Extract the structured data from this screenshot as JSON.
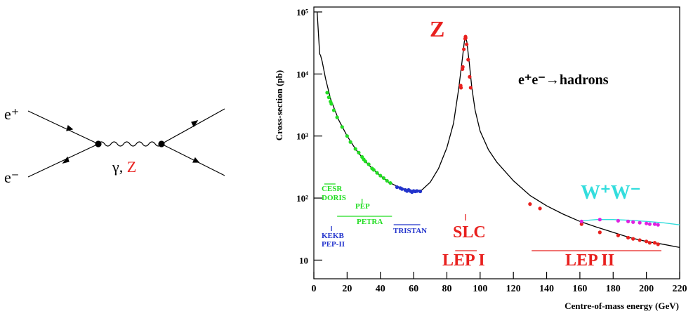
{
  "diagram": {
    "incoming_top": "e⁺",
    "incoming_bottom": "e⁻",
    "mediator": "γ, ",
    "mediator_z": "Z"
  },
  "chart_data": {
    "type": "line",
    "y_label": "Cross-section (pb)",
    "x_label": "Centre-of-mass energy (GeV)",
    "xlim": [
      0,
      220
    ],
    "xticks": [
      0,
      20,
      40,
      60,
      80,
      100,
      120,
      140,
      160,
      180,
      200,
      220
    ],
    "ylim": [
      5,
      120000
    ],
    "log_y": true,
    "yticks": [
      10,
      {
        "value": 100,
        "label": "10²"
      },
      {
        "value": 1000,
        "label": "10³"
      },
      {
        "value": 10000,
        "label": "10⁴"
      },
      {
        "value": 100000,
        "label": "10⁵"
      }
    ],
    "series": [
      {
        "style": "line",
        "color": "#000000",
        "x": [
          2,
          3,
          3.5,
          4,
          5,
          7,
          10,
          15,
          20,
          25,
          30,
          35,
          40,
          45,
          50,
          55,
          60,
          65,
          70,
          75,
          80,
          84,
          87,
          89,
          90.5,
          91.2,
          92,
          93.5,
          95,
          97,
          100,
          105,
          110,
          120,
          130,
          140,
          150,
          160,
          170,
          180,
          190,
          200,
          210,
          220
        ],
        "values": [
          100000,
          35000,
          21000,
          20000,
          16000,
          8500,
          4000,
          1800,
          1000,
          620,
          420,
          300,
          230,
          180,
          155,
          138,
          130,
          135,
          180,
          300,
          650,
          1600,
          5500,
          15000,
          33000,
          40000,
          33000,
          15000,
          6000,
          2600,
          1200,
          600,
          380,
          190,
          110,
          75,
          55,
          42,
          34,
          28,
          23,
          20,
          18,
          16
        ]
      },
      {
        "style": "points",
        "color": "#22dd22",
        "x": [
          8,
          9,
          10,
          10.5,
          12,
          14,
          17,
          20,
          22,
          25,
          27,
          29,
          30,
          31,
          33,
          35,
          36,
          38,
          40,
          42,
          44,
          46
        ],
        "values": [
          5000,
          4200,
          3600,
          3300,
          2600,
          2000,
          1400,
          1000,
          800,
          620,
          540,
          460,
          420,
          390,
          350,
          300,
          285,
          255,
          230,
          210,
          190,
          175
        ]
      },
      {
        "style": "points",
        "color": "#2233cc",
        "x": [
          50,
          52,
          53,
          55,
          56,
          57,
          58,
          59,
          60,
          61,
          62,
          64
        ],
        "values": [
          150,
          145,
          140,
          135,
          130,
          135,
          130,
          125,
          130,
          128,
          130,
          128
        ]
      },
      {
        "style": "points",
        "color": "#e8201e",
        "x": [
          88.3,
          88.5,
          89.4,
          89.6,
          90.2,
          91.0,
          91.2,
          91.3,
          91.9,
          92.8,
          93.7,
          94.3,
          130,
          136,
          161,
          172,
          183,
          189,
          192,
          196,
          200,
          202,
          205,
          207
        ],
        "values": [
          6500,
          6000,
          12000,
          13000,
          25000,
          37000,
          40000,
          38000,
          30000,
          17000,
          9000,
          6000,
          80,
          68,
          38,
          28,
          25,
          23,
          22,
          21,
          20,
          19,
          19,
          18
        ]
      },
      {
        "style": "line",
        "color": "#33dddd",
        "x": [
          160,
          162,
          165,
          170,
          180,
          190,
          200,
          210,
          220
        ],
        "values": [
          40,
          43,
          44,
          45,
          45,
          44,
          42,
          40,
          37
        ]
      },
      {
        "style": "points",
        "color": "#e020e0",
        "x": [
          161,
          172,
          183,
          189,
          192,
          196,
          200,
          202,
          205,
          207
        ],
        "values": [
          42,
          45,
          43,
          42,
          41,
          40,
          39,
          38,
          38,
          37
        ]
      }
    ],
    "annotations": [
      {
        "text": "CESR",
        "color": "#22dd22",
        "range": [
          6.3,
          13
        ]
      },
      {
        "text": "DORIS",
        "color": "#22dd22"
      },
      {
        "text": "PEP",
        "color": "#22dd22",
        "range": [
          29
        ]
      },
      {
        "text": "PETRA",
        "color": "#22dd22",
        "range": [
          14,
          47
        ]
      },
      {
        "text": "KEKB",
        "color": "#2233cc",
        "range": [
          10.6
        ]
      },
      {
        "text": "PEP-II",
        "color": "#2233cc"
      },
      {
        "text": "TRISTAN",
        "color": "#2233cc",
        "range": [
          48,
          64
        ]
      },
      {
        "text": "SLC",
        "color": "#e8201e",
        "range": [
          91.2
        ]
      },
      {
        "text": "LEP I",
        "color": "#e8201e",
        "range": [
          85,
          98
        ]
      },
      {
        "text": "LEP II",
        "color": "#e8201e",
        "range": [
          131,
          209
        ]
      },
      {
        "text": "Z",
        "color": "#e8201e"
      },
      {
        "text": "e⁺e⁻→hadrons",
        "color": "#000000"
      },
      {
        "text": "W⁺W⁻",
        "color": "#33dddd"
      }
    ]
  }
}
